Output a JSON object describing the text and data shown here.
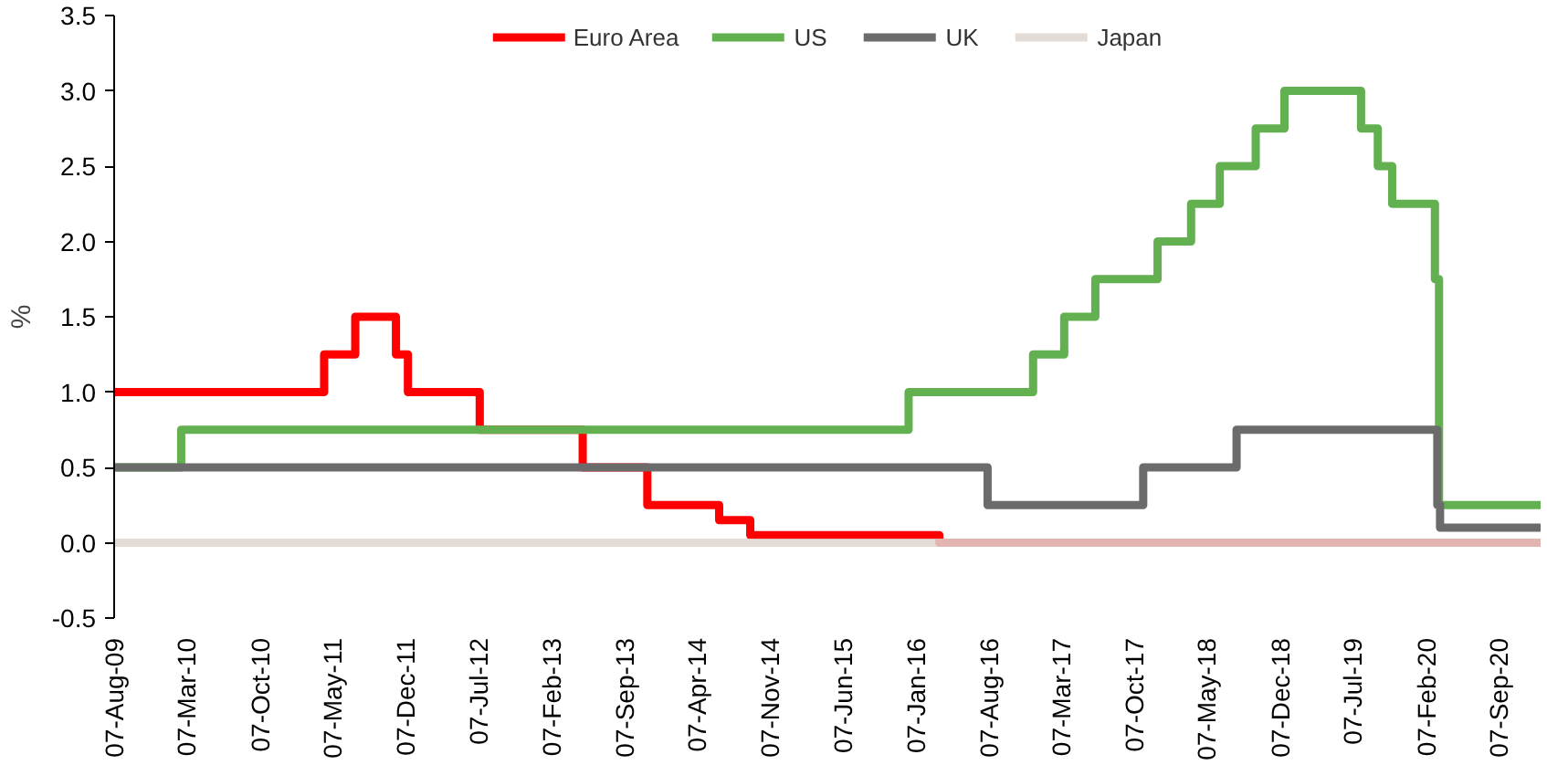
{
  "chart_data": {
    "type": "step",
    "ylabel": "%",
    "xlim": [
      "2009-08-07",
      "2021-01-07"
    ],
    "xticks": [
      {
        "value": "2009-08-07",
        "label": "07-Aug-09"
      },
      {
        "value": "2010-03-07",
        "label": "07-Mar-10"
      },
      {
        "value": "2010-10-07",
        "label": "07-Oct-10"
      },
      {
        "value": "2011-05-07",
        "label": "07-May-11"
      },
      {
        "value": "2011-12-07",
        "label": "07-Dec-11"
      },
      {
        "value": "2012-07-07",
        "label": "07-Jul-12"
      },
      {
        "value": "2013-02-07",
        "label": "07-Feb-13"
      },
      {
        "value": "2013-09-07",
        "label": "07-Sep-13"
      },
      {
        "value": "2014-04-07",
        "label": "07-Apr-14"
      },
      {
        "value": "2014-11-07",
        "label": "07-Nov-14"
      },
      {
        "value": "2015-06-07",
        "label": "07-Jun-15"
      },
      {
        "value": "2016-01-07",
        "label": "07-Jan-16"
      },
      {
        "value": "2016-08-07",
        "label": "07-Aug-16"
      },
      {
        "value": "2017-03-07",
        "label": "07-Mar-17"
      },
      {
        "value": "2017-10-07",
        "label": "07-Oct-17"
      },
      {
        "value": "2018-05-07",
        "label": "07-May-18"
      },
      {
        "value": "2018-12-07",
        "label": "07-Dec-18"
      },
      {
        "value": "2019-07-07",
        "label": "07-Jul-19"
      },
      {
        "value": "2020-02-07",
        "label": "07-Feb-20"
      },
      {
        "value": "2020-09-07",
        "label": "07-Sep-20"
      }
    ],
    "ylim": [
      -0.5,
      3.5
    ],
    "yticks": [
      {
        "value": -0.5,
        "label": "-0.5"
      },
      {
        "value": 0,
        "label": "0.0"
      },
      {
        "value": 0.5,
        "label": "0.5"
      },
      {
        "value": 1,
        "label": "1.0"
      },
      {
        "value": 1.5,
        "label": "1.5"
      },
      {
        "value": 2,
        "label": "2.0"
      },
      {
        "value": 2.5,
        "label": "2.5"
      },
      {
        "value": 3,
        "label": "3.0"
      },
      {
        "value": 3.5,
        "label": "3.5"
      }
    ],
    "grid": false,
    "legend": "top",
    "series": [
      {
        "name": "Euro Area",
        "color": "#ff0000",
        "x": [
          "2009-08-07",
          "2011-04-13",
          "2011-07-13",
          "2011-11-09",
          "2011-12-14",
          "2012-07-11",
          "2013-05-08",
          "2013-11-13",
          "2014-06-11",
          "2014-09-10",
          "2016-03-16",
          "2021-01-07"
        ],
        "values": [
          1.0,
          1.25,
          1.5,
          1.25,
          1.0,
          0.75,
          0.5,
          0.25,
          0.15,
          0.05,
          0.0,
          0.0
        ]
      },
      {
        "name": "US",
        "color": "#62b04f",
        "x": [
          "2009-08-07",
          "2010-02-19",
          "2015-12-17",
          "2016-12-15",
          "2017-03-16",
          "2017-06-15",
          "2017-12-14",
          "2018-03-22",
          "2018-06-14",
          "2018-09-27",
          "2018-12-20",
          "2019-08-01",
          "2019-09-19",
          "2019-10-31",
          "2020-03-04",
          "2020-03-16",
          "2021-01-07"
        ],
        "values": [
          0.5,
          0.75,
          1.0,
          1.25,
          1.5,
          1.75,
          2.0,
          2.25,
          2.5,
          2.75,
          3.0,
          2.75,
          2.5,
          2.25,
          1.75,
          0.25,
          0.25
        ]
      },
      {
        "name": "UK",
        "color": "#6b6b6b",
        "x": [
          "2009-08-07",
          "2016-08-04",
          "2017-11-02",
          "2018-08-02",
          "2020-03-11",
          "2020-03-19",
          "2021-01-07"
        ],
        "values": [
          0.5,
          0.25,
          0.5,
          0.75,
          0.25,
          0.1,
          0.1
        ]
      },
      {
        "name": "Japan",
        "color": "#ddd5cf",
        "x": [
          "2009-08-07",
          "2021-01-07"
        ],
        "values": [
          0.0,
          0.0
        ]
      }
    ]
  }
}
